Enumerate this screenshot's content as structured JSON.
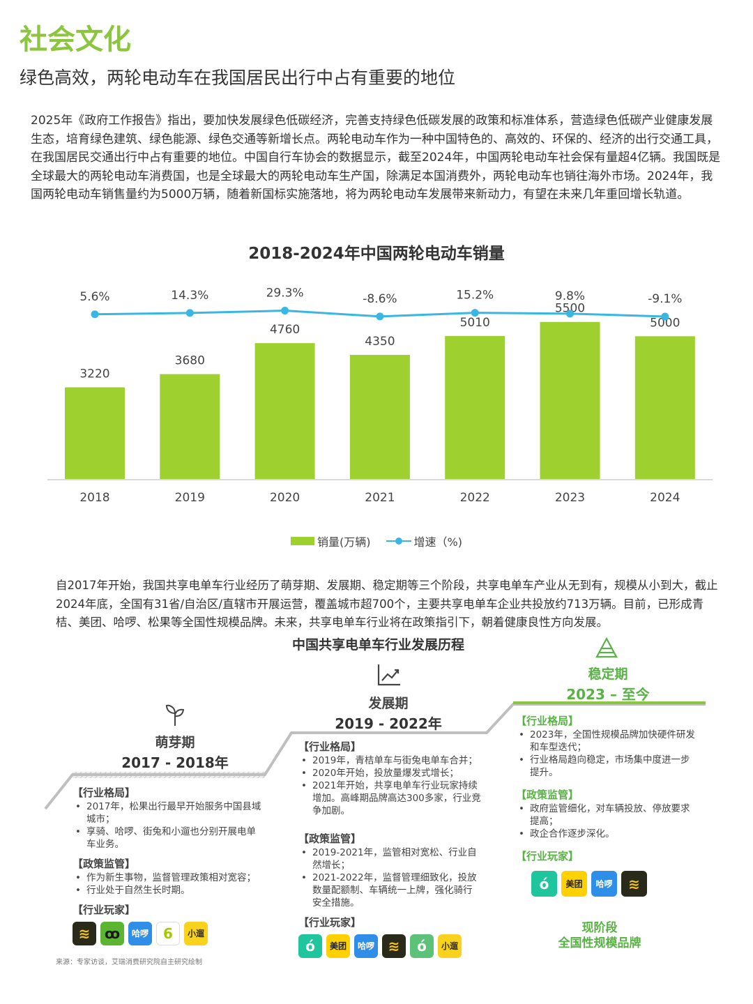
{
  "section_title": "社会文化",
  "subtitle": "绿色高效，两轮电动车在我国居民出行中占有重要的地位",
  "intro": "2025年《政府工作报告》指出，要加快发展绿色低碳经济，完善支持绿色低碳发展的政策和标准体系，营造绿色低碳产业健康发展生态，培育绿色建筑、绿色能源、绿色交通等新增长点。两轮电动车作为一种中国特色的、高效的、环保的、经济的出行交通工具，在我国居民交通出行中占有重要的地位。中国自行车协会的数据显示，截至2024年，中国两轮电动车社会保有量超4亿辆。我国既是全球最大的两轮电动车消费国，也是全球最大的两轮电动车生产国，除满足本国消费外，两轮电动车也销往海外市场。2024年，我国两轮电动车销售量约为5000万辆，随着新国标实施落地，将为两轮电动车发展带来新动力，有望在未来几年重回增长轨道。",
  "chart_data": {
    "type": "bar",
    "title": "2018-2024年中国两轮电动车销量",
    "categories": [
      "2018",
      "2019",
      "2020",
      "2021",
      "2022",
      "2023",
      "2024"
    ],
    "series": [
      {
        "name": "销量(万辆)",
        "type": "bar",
        "values": [
          3220,
          3680,
          4760,
          4350,
          5010,
          5500,
          5000
        ],
        "color": "#9ed02f"
      },
      {
        "name": "增速（%)",
        "type": "line",
        "values": [
          5.6,
          14.3,
          29.3,
          -8.6,
          15.2,
          9.8,
          -9.1
        ],
        "labels": [
          "5.6%",
          "14.3%",
          "29.3%",
          "-8.6%",
          "15.2%",
          "9.8%",
          "-9.1%"
        ],
        "color": "#3ab6e4"
      }
    ],
    "ylim": [
      0,
      7000
    ],
    "y2lim": [
      -160,
      80
    ],
    "legend": "bottom",
    "grid": false
  },
  "para2": "自2017年开始，我国共享电单车行业经历了萌芽期、发展期、稳定期等三个阶段，共享电单车产业从无到有，规模从小到大，截止2024年底，全国有31省/自治区/直辖市开展运营，覆盖城市超700个，主要共享电单车企业共投放约713万辆。目前，已形成青桔、美团、哈啰、松果等全国性规模品牌。未来，共享电单车行业将在政策指引下，朝着健康良性方向发展。",
  "timeline_title": "中国共享电单车行业发展历程",
  "stages": [
    {
      "name": "萌芽期",
      "years": "2017 - 2018年",
      "icon": "sprout-icon",
      "sections": [
        {
          "head": "【行业格局】",
          "items": [
            "2017年，松果出行最早开始服务中国县域城市；",
            "享骑、哈啰、街兔和小遛也分别开展电单车业务。"
          ]
        },
        {
          "head": "【政策监管】",
          "items": [
            "作为新生事物，监督管理政策相对宽容；",
            "行业处于自然生长时期。"
          ]
        }
      ],
      "players_head": "【行业玩家】",
      "players": [
        {
          "label": "松果",
          "text": "≋",
          "bg": "#2a2a1a",
          "fg": "#f4c21f"
        },
        {
          "label": "享骑",
          "text": "ꝏ",
          "bg": "#5cb531",
          "fg": "#1a1a1a"
        },
        {
          "label": "哈啰",
          "text": "哈啰",
          "bg": "#2f8ee8",
          "fg": "#ffffff"
        },
        {
          "label": "街兔",
          "text": "6",
          "bg": "#ffffff",
          "fg": "#a8c700"
        },
        {
          "label": "小遛",
          "text": "小遛",
          "bg": "#f8d21c",
          "fg": "#333333"
        }
      ]
    },
    {
      "name": "发展期",
      "years": "2019 - 2022年",
      "icon": "growth-chart-icon",
      "sections": [
        {
          "head": "【行业格局】",
          "items": [
            "2019年，青桔单车与街兔电单车合并；",
            "2020年开始，投放量爆发式增长；",
            "2021年开始，共享电单车行业玩家持续增加。高峰期品牌高达300多家，行业竞争加剧。"
          ]
        },
        {
          "head": "【政策监管】",
          "items": [
            "2019-2021年，监管相对宽松、行业自然增长；",
            "2021-2022年，监督管理细致化，投放数量配额制、车辆统一上牌，强化骑行安全措施。"
          ]
        }
      ],
      "players_head": "【行业玩家】",
      "players": [
        {
          "label": "青桔",
          "text": "ó",
          "bg": "#1fc59d",
          "fg": "#ffffff"
        },
        {
          "label": "美团",
          "text": "美团",
          "bg": "#ffd100",
          "fg": "#222222"
        },
        {
          "label": "哈啰",
          "text": "哈啰",
          "bg": "#2f8ee8",
          "fg": "#ffffff"
        },
        {
          "label": "松果",
          "text": "≋",
          "bg": "#2a2a1a",
          "fg": "#f4c21f"
        },
        {
          "label": "享骑",
          "text": "ó",
          "bg": "#5cc27a",
          "fg": "#ffffff"
        },
        {
          "label": "小遛",
          "text": "小遛",
          "bg": "#f8d21c",
          "fg": "#333333"
        }
      ]
    },
    {
      "name": "稳定期",
      "years": "2023 – 至今",
      "icon": "pyramid-icon",
      "sections": [
        {
          "head": "【行业格局】",
          "items": [
            "2023年，全国性规模品牌加快硬件研发和车型迭代；",
            "行业格局趋向稳定，市场集中度进一步提升。"
          ]
        },
        {
          "head": "【政策监管】",
          "items": [
            "政府监管细化，对车辆投放、停放要求提高；",
            "政企合作逐步深化。"
          ]
        }
      ],
      "players_head": "【行业玩家】",
      "players": [
        {
          "label": "青桔",
          "text": "ó",
          "bg": "#1fc59d",
          "fg": "#ffffff"
        },
        {
          "label": "美团",
          "text": "美团",
          "bg": "#ffd100",
          "fg": "#222222"
        },
        {
          "label": "哈啰",
          "text": "哈啰",
          "bg": "#2f8ee8",
          "fg": "#ffffff"
        },
        {
          "label": "松果",
          "text": "≋",
          "bg": "#2a2a1a",
          "fg": "#f4c21f"
        }
      ],
      "footer": [
        "现阶段",
        "全国性规模品牌"
      ]
    }
  ],
  "source": "来源：专家访谈，艾瑞消费研究院自主研究绘制"
}
